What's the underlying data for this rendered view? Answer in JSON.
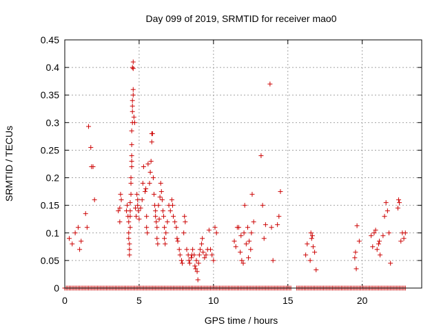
{
  "chart_data": {
    "type": "scatter",
    "title": "Day 099 of 2019, SRMTID for receiver mao0",
    "xlabel": "GPS time / hours",
    "ylabel": "SRMTID / TECUs",
    "xlim": [
      0,
      24
    ],
    "ylim": [
      0,
      0.45
    ],
    "xticks": [
      0,
      5,
      10,
      15,
      20
    ],
    "xtick_labels": [
      "0",
      "5",
      "10",
      "15",
      "20"
    ],
    "yticks": [
      0,
      0.05,
      0.1,
      0.15,
      0.2,
      0.25,
      0.3,
      0.35,
      0.4,
      0.45
    ],
    "ytick_labels": [
      "0",
      "0.05",
      "0.1",
      "0.15",
      "0.2",
      "0.25",
      "0.3",
      "0.35",
      "0.4",
      "0.45"
    ],
    "grid": true,
    "marker": "+",
    "color": "#cc0000",
    "series": [
      {
        "name": "SRMTID",
        "points": [
          [
            0.3,
            0.09
          ],
          [
            0.5,
            0.08
          ],
          [
            0.7,
            0.1
          ],
          [
            0.9,
            0.11
          ],
          [
            1.0,
            0.07
          ],
          [
            1.1,
            0.085
          ],
          [
            1.4,
            0.135
          ],
          [
            1.5,
            0.11
          ],
          [
            1.6,
            0.293
          ],
          [
            1.75,
            0.255
          ],
          [
            1.8,
            0.22
          ],
          [
            1.9,
            0.22
          ],
          [
            2.0,
            0.16
          ],
          [
            3.6,
            0.14
          ],
          [
            3.7,
            0.145
          ],
          [
            3.7,
            0.12
          ],
          [
            3.75,
            0.17
          ],
          [
            3.8,
            0.16
          ],
          [
            4.15,
            0.14
          ],
          [
            4.2,
            0.15
          ],
          [
            4.25,
            0.13
          ],
          [
            4.3,
            0.12
          ],
          [
            4.3,
            0.1
          ],
          [
            4.3,
            0.09
          ],
          [
            4.35,
            0.08
          ],
          [
            4.35,
            0.07
          ],
          [
            4.35,
            0.06
          ],
          [
            4.4,
            0.155
          ],
          [
            4.4,
            0.14
          ],
          [
            4.4,
            0.13
          ],
          [
            4.4,
            0.11
          ],
          [
            4.45,
            0.17
          ],
          [
            4.45,
            0.19
          ],
          [
            4.45,
            0.2
          ],
          [
            4.5,
            0.22
          ],
          [
            4.5,
            0.23
          ],
          [
            4.5,
            0.24
          ],
          [
            4.5,
            0.26
          ],
          [
            4.5,
            0.285
          ],
          [
            4.55,
            0.3
          ],
          [
            4.55,
            0.32
          ],
          [
            4.55,
            0.33
          ],
          [
            4.55,
            0.34
          ],
          [
            4.6,
            0.35
          ],
          [
            4.6,
            0.36
          ],
          [
            4.55,
            0.4
          ],
          [
            4.6,
            0.41
          ],
          [
            4.6,
            0.398
          ],
          [
            4.65,
            0.31
          ],
          [
            4.7,
            0.3
          ],
          [
            4.75,
            0.145
          ],
          [
            4.8,
            0.13
          ],
          [
            4.85,
            0.17
          ],
          [
            4.9,
            0.16
          ],
          [
            4.9,
            0.15
          ],
          [
            4.95,
            0.14
          ],
          [
            5.0,
            0.125
          ],
          [
            5.1,
            0.145
          ],
          [
            5.2,
            0.16
          ],
          [
            5.25,
            0.19
          ],
          [
            5.3,
            0.22
          ],
          [
            5.4,
            0.175
          ],
          [
            5.45,
            0.18
          ],
          [
            5.5,
            0.13
          ],
          [
            5.5,
            0.11
          ],
          [
            5.55,
            0.1
          ],
          [
            5.6,
            0.225
          ],
          [
            5.7,
            0.19
          ],
          [
            5.75,
            0.21
          ],
          [
            5.8,
            0.23
          ],
          [
            5.85,
            0.28
          ],
          [
            5.85,
            0.265
          ],
          [
            5.9,
            0.28
          ],
          [
            5.95,
            0.2
          ],
          [
            6.0,
            0.17
          ],
          [
            6.05,
            0.15
          ],
          [
            6.1,
            0.14
          ],
          [
            6.1,
            0.13
          ],
          [
            6.15,
            0.12
          ],
          [
            6.2,
            0.11
          ],
          [
            6.2,
            0.09
          ],
          [
            6.25,
            0.08
          ],
          [
            6.3,
            0.15
          ],
          [
            6.35,
            0.125
          ],
          [
            6.4,
            0.165
          ],
          [
            6.45,
            0.19
          ],
          [
            6.5,
            0.175
          ],
          [
            6.55,
            0.16
          ],
          [
            6.6,
            0.14
          ],
          [
            6.65,
            0.13
          ],
          [
            6.7,
            0.11
          ],
          [
            6.7,
            0.09
          ],
          [
            6.75,
            0.08
          ],
          [
            6.8,
            0.1
          ],
          [
            6.9,
            0.12
          ],
          [
            7.0,
            0.15
          ],
          [
            7.1,
            0.14
          ],
          [
            7.2,
            0.16
          ],
          [
            7.25,
            0.15
          ],
          [
            7.3,
            0.13
          ],
          [
            7.4,
            0.12
          ],
          [
            7.5,
            0.11
          ],
          [
            7.55,
            0.09
          ],
          [
            7.6,
            0.085
          ],
          [
            7.7,
            0.07
          ],
          [
            7.75,
            0.06
          ],
          [
            7.85,
            0.05
          ],
          [
            7.9,
            0.045
          ],
          [
            8.0,
            0.1
          ],
          [
            8.05,
            0.13
          ],
          [
            8.1,
            0.12
          ],
          [
            8.2,
            0.07
          ],
          [
            8.3,
            0.06
          ],
          [
            8.35,
            0.05
          ],
          [
            8.4,
            0.045
          ],
          [
            8.5,
            0.055
          ],
          [
            8.55,
            0.06
          ],
          [
            8.6,
            0.07
          ],
          [
            8.7,
            0.06
          ],
          [
            8.75,
            0.04
          ],
          [
            8.8,
            0.035
          ],
          [
            8.85,
            0.05
          ],
          [
            8.9,
            0.03
          ],
          [
            8.95,
            0.015
          ],
          [
            9.0,
            0.045
          ],
          [
            9.05,
            0.06
          ],
          [
            9.1,
            0.07
          ],
          [
            9.2,
            0.08
          ],
          [
            9.25,
            0.09
          ],
          [
            9.3,
            0.065
          ],
          [
            9.4,
            0.055
          ],
          [
            9.5,
            0.06
          ],
          [
            9.6,
            0.07
          ],
          [
            9.7,
            0.105
          ],
          [
            9.8,
            0.07
          ],
          [
            9.9,
            0.06
          ],
          [
            10.0,
            0.05
          ],
          [
            10.1,
            0.11
          ],
          [
            10.2,
            0.1
          ],
          [
            11.4,
            0.085
          ],
          [
            11.5,
            0.075
          ],
          [
            11.6,
            0.11
          ],
          [
            11.7,
            0.11
          ],
          [
            11.8,
            0.065
          ],
          [
            11.85,
            0.095
          ],
          [
            11.9,
            0.05
          ],
          [
            12.0,
            0.045
          ],
          [
            12.05,
            0.1
          ],
          [
            12.1,
            0.15
          ],
          [
            12.2,
            0.08
          ],
          [
            12.3,
            0.11
          ],
          [
            12.35,
            0.055
          ],
          [
            12.4,
            0.085
          ],
          [
            12.5,
            0.07
          ],
          [
            12.55,
            0.1
          ],
          [
            12.6,
            0.17
          ],
          [
            12.7,
            0.12
          ],
          [
            13.2,
            0.24
          ],
          [
            13.3,
            0.15
          ],
          [
            13.4,
            0.09
          ],
          [
            13.5,
            0.115
          ],
          [
            13.8,
            0.37
          ],
          [
            13.9,
            0.11
          ],
          [
            14.0,
            0.05
          ],
          [
            14.3,
            0.115
          ],
          [
            14.4,
            0.13
          ],
          [
            14.5,
            0.175
          ],
          [
            16.2,
            0.06
          ],
          [
            16.3,
            0.08
          ],
          [
            16.5,
            0.05
          ],
          [
            16.55,
            0.1
          ],
          [
            16.6,
            0.09
          ],
          [
            16.65,
            0.095
          ],
          [
            16.7,
            0.075
          ],
          [
            16.8,
            0.065
          ],
          [
            16.9,
            0.033
          ],
          [
            19.5,
            0.055
          ],
          [
            19.55,
            0.065
          ],
          [
            19.6,
            0.035
          ],
          [
            19.65,
            0.113
          ],
          [
            19.8,
            0.085
          ],
          [
            20.6,
            0.095
          ],
          [
            20.7,
            0.075
          ],
          [
            20.8,
            0.1
          ],
          [
            20.9,
            0.105
          ],
          [
            21.0,
            0.07
          ],
          [
            21.1,
            0.08
          ],
          [
            21.15,
            0.085
          ],
          [
            21.2,
            0.06
          ],
          [
            21.4,
            0.095
          ],
          [
            21.5,
            0.13
          ],
          [
            21.6,
            0.155
          ],
          [
            21.7,
            0.14
          ],
          [
            21.8,
            0.1
          ],
          [
            21.9,
            0.045
          ],
          [
            22.4,
            0.145
          ],
          [
            22.45,
            0.16
          ],
          [
            22.5,
            0.155
          ],
          [
            22.6,
            0.085
          ],
          [
            22.7,
            0.1
          ],
          [
            22.8,
            0.09
          ],
          [
            22.9,
            0.1
          ]
        ],
        "zero_ranges": [
          [
            0,
            15.2
          ],
          [
            15.6,
            22.9
          ]
        ],
        "zero_step": 0.1
      }
    ]
  }
}
